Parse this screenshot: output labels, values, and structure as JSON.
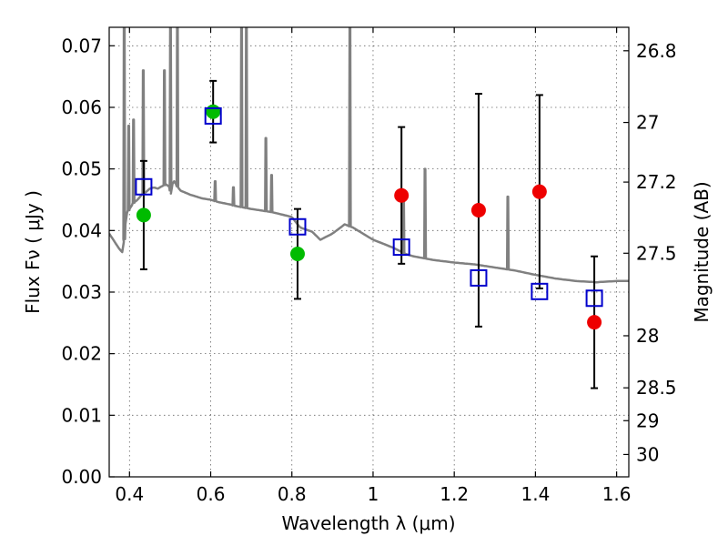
{
  "chart_data": {
    "type": "scatter",
    "xlabel": "Wavelength  λ (μm)",
    "ylabel": "Flux  Fν  ( μJy )",
    "ylabel_right": "Magnitude (AB)",
    "xlim": [
      0.35,
      1.63
    ],
    "ylim": [
      0.0,
      0.073
    ],
    "grid": true,
    "x_ticks": [
      0.4,
      0.6,
      0.8,
      1.0,
      1.2,
      1.4,
      1.6
    ],
    "x_tick_labels": [
      "0.4",
      "0.6",
      "0.8",
      "1",
      "1.2",
      "1.4",
      "1.6"
    ],
    "y_ticks": [
      0.0,
      0.01,
      0.02,
      0.03,
      0.04,
      0.05,
      0.06,
      0.07
    ],
    "y_tick_labels": [
      "0.00",
      "0.01",
      "0.02",
      "0.03",
      "0.04",
      "0.05",
      "0.06",
      "0.07"
    ],
    "mag_ticks": [
      26.8,
      27,
      27.2,
      27.5,
      28,
      28.5,
      29,
      30
    ],
    "mag_tick_labels": [
      "26.8",
      "27",
      "27.2",
      "27.5",
      "28",
      "28.5",
      "29",
      "30"
    ],
    "series": [
      {
        "marker": "circle",
        "color": "#00bb00",
        "points": [
          {
            "x": 0.435,
            "y": 0.0425,
            "err": 0.0088
          },
          {
            "x": 0.606,
            "y": 0.0593,
            "err": 0.005
          },
          {
            "x": 0.814,
            "y": 0.0362,
            "err": 0.0073
          }
        ]
      },
      {
        "marker": "circle",
        "color": "#ee0000",
        "points": [
          {
            "x": 1.07,
            "y": 0.0457,
            "err": 0.0111
          },
          {
            "x": 1.26,
            "y": 0.0433,
            "err": 0.0189
          },
          {
            "x": 1.41,
            "y": 0.0463,
            "err": 0.0157
          },
          {
            "x": 1.545,
            "y": 0.0251,
            "err": 0.0107
          }
        ]
      },
      {
        "marker": "square-open",
        "color": "#0000cc",
        "points": [
          {
            "x": 0.435,
            "y": 0.0471
          },
          {
            "x": 0.606,
            "y": 0.0586
          },
          {
            "x": 0.814,
            "y": 0.0406
          },
          {
            "x": 1.07,
            "y": 0.0373
          },
          {
            "x": 1.26,
            "y": 0.0323
          },
          {
            "x": 1.41,
            "y": 0.0301
          },
          {
            "x": 1.545,
            "y": 0.029
          }
        ]
      }
    ],
    "spectrum": {
      "color": "#808080",
      "x": [
        0.35,
        0.365,
        0.375,
        0.382,
        0.388,
        0.39,
        0.392,
        0.395,
        0.4,
        0.41,
        0.42,
        0.43,
        0.44,
        0.45,
        0.46,
        0.47,
        0.48,
        0.49,
        0.5,
        0.502,
        0.505,
        0.508,
        0.51,
        0.515,
        0.52,
        0.525,
        0.55,
        0.58,
        0.6,
        0.62,
        0.65,
        0.66,
        0.7,
        0.75,
        0.8,
        0.82,
        0.85,
        0.87,
        0.9,
        0.93,
        0.95,
        1.0,
        1.05,
        1.08,
        1.1,
        1.15,
        1.2,
        1.25,
        1.3,
        1.35,
        1.4,
        1.45,
        1.5,
        1.55,
        1.6,
        1.63
      ],
      "y": [
        0.0395,
        0.038,
        0.037,
        0.0365,
        0.039,
        0.041,
        0.0425,
        0.043,
        0.0435,
        0.0445,
        0.045,
        0.0458,
        0.0462,
        0.0468,
        0.047,
        0.0468,
        0.0472,
        0.0475,
        0.047,
        0.046,
        0.0475,
        0.0478,
        0.048,
        0.0475,
        0.047,
        0.0465,
        0.0458,
        0.0452,
        0.045,
        0.0446,
        0.0442,
        0.044,
        0.0435,
        0.043,
        0.0422,
        0.0405,
        0.0398,
        0.0385,
        0.0395,
        0.041,
        0.0405,
        0.0385,
        0.0372,
        0.0362,
        0.0358,
        0.0352,
        0.0348,
        0.0345,
        0.034,
        0.0335,
        0.0328,
        0.0322,
        0.0318,
        0.0316,
        0.0318,
        0.0318
      ],
      "lines": [
        {
          "x": 0.387,
          "peak": 0.073
        },
        {
          "x": 0.398,
          "peak": 0.057
        },
        {
          "x": 0.41,
          "peak": 0.058
        },
        {
          "x": 0.434,
          "peak": 0.066
        },
        {
          "x": 0.486,
          "peak": 0.066
        },
        {
          "x": 0.501,
          "peak": 0.073
        },
        {
          "x": 0.518,
          "peak": 0.073
        },
        {
          "x": 0.611,
          "peak": 0.048
        },
        {
          "x": 0.656,
          "peak": 0.047
        },
        {
          "x": 0.676,
          "peak": 0.073
        },
        {
          "x": 0.688,
          "peak": 0.073
        },
        {
          "x": 0.736,
          "peak": 0.055
        },
        {
          "x": 0.75,
          "peak": 0.049
        },
        {
          "x": 0.943,
          "peak": 0.073
        },
        {
          "x": 1.075,
          "peak": 0.045
        },
        {
          "x": 1.128,
          "peak": 0.05
        },
        {
          "x": 1.332,
          "peak": 0.0455
        }
      ]
    }
  }
}
